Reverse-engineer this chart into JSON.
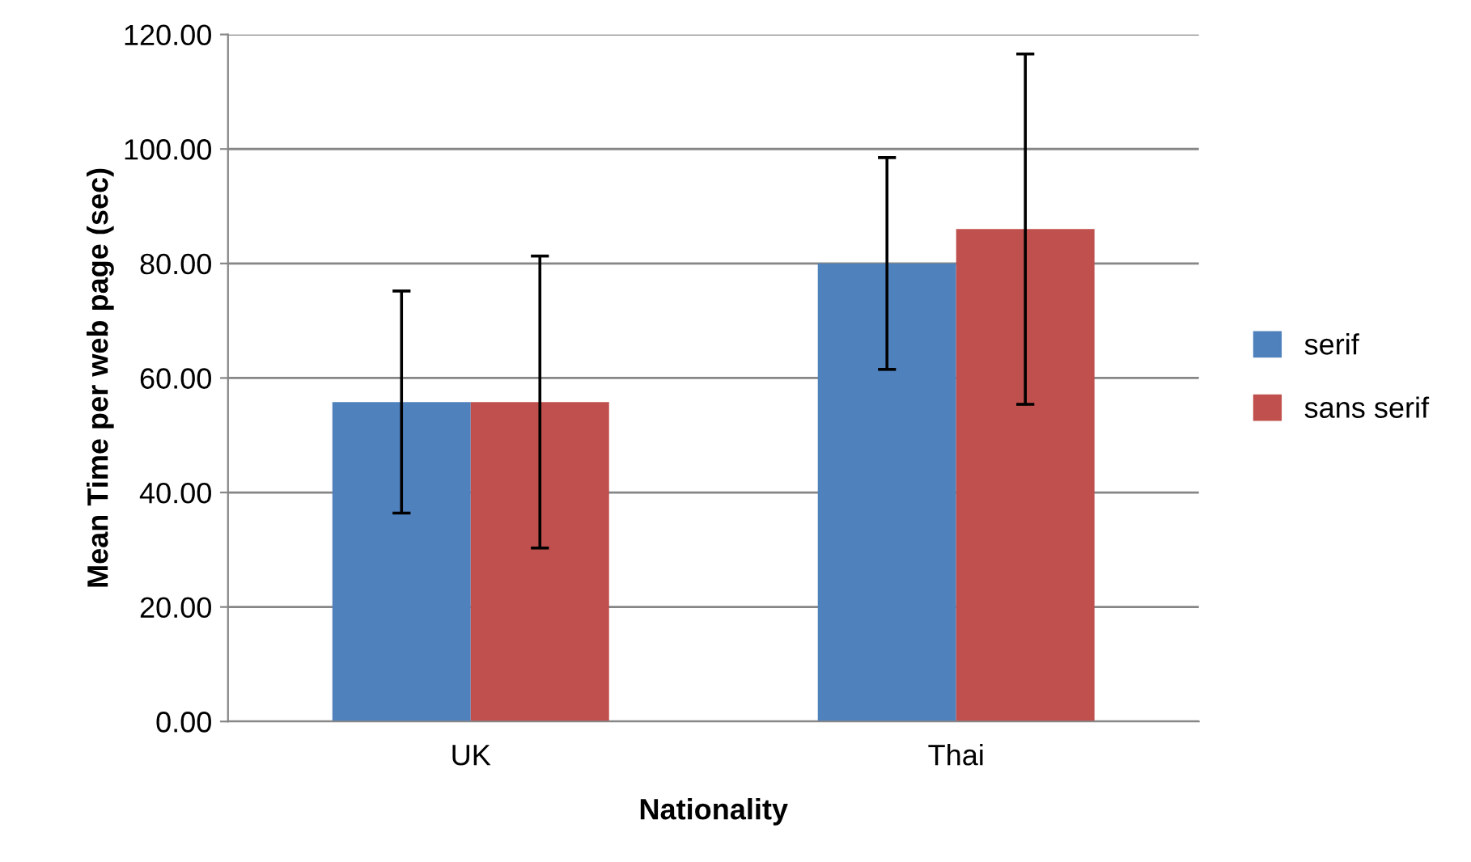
{
  "chart_data": {
    "type": "bar",
    "xlabel": "Nationality",
    "ylabel": "Mean Time per web page (sec)",
    "categories": [
      "UK",
      "Thai"
    ],
    "series": [
      {
        "name": "serif",
        "color": "#4f81bd",
        "values": [
          55.8,
          80.0
        ],
        "errors": [
          19.4,
          18.5
        ]
      },
      {
        "name": "sans serif",
        "color": "#c0504d",
        "values": [
          55.8,
          86.0
        ],
        "errors": [
          25.5,
          30.6
        ]
      }
    ],
    "ylim": [
      0,
      120
    ],
    "yticks": [
      {
        "value": 0,
        "label": "0.00"
      },
      {
        "value": 20,
        "label": "20.00"
      },
      {
        "value": 40,
        "label": "40.00"
      },
      {
        "value": 60,
        "label": "60.00"
      },
      {
        "value": 80,
        "label": "80.00"
      },
      {
        "value": 100,
        "label": "100.00"
      },
      {
        "value": 120,
        "label": "120.00"
      }
    ],
    "grid": "y",
    "legend": "right"
  }
}
